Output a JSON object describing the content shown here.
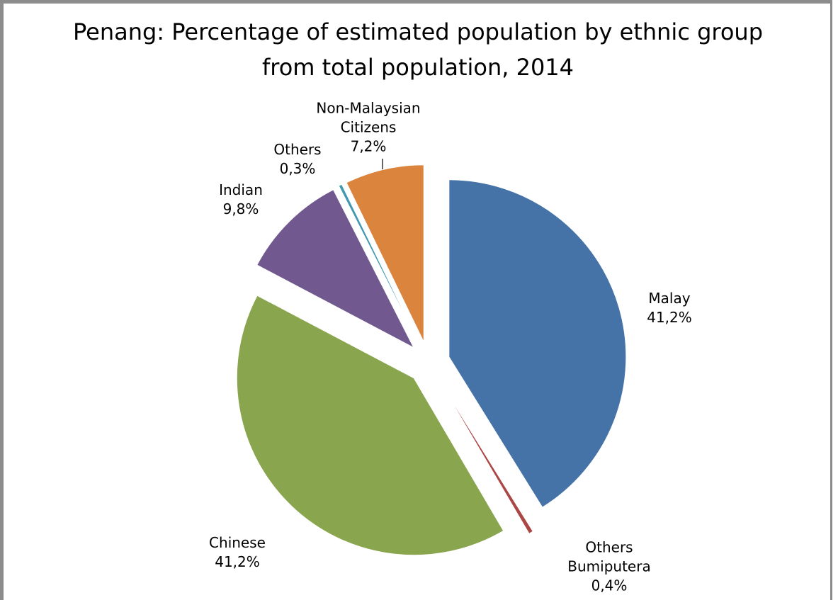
{
  "chart_data": {
    "type": "pie",
    "title": "Penang: Percentage of estimated population by ethnic group from total population, 2014",
    "categories": [
      "Malay",
      "Others Bumiputera",
      "Chinese",
      "Indian",
      "Others",
      "Non-Malaysian Citizens"
    ],
    "values": [
      41.2,
      0.4,
      41.2,
      9.8,
      0.3,
      7.2
    ],
    "value_labels": [
      "41,2%",
      "0,4%",
      "41,2%",
      "9,8%",
      "0,3%",
      "7,2%"
    ],
    "colors": [
      "#4572a7",
      "#aa4643",
      "#89a54e",
      "#71588f",
      "#4198af",
      "#db843d"
    ]
  }
}
